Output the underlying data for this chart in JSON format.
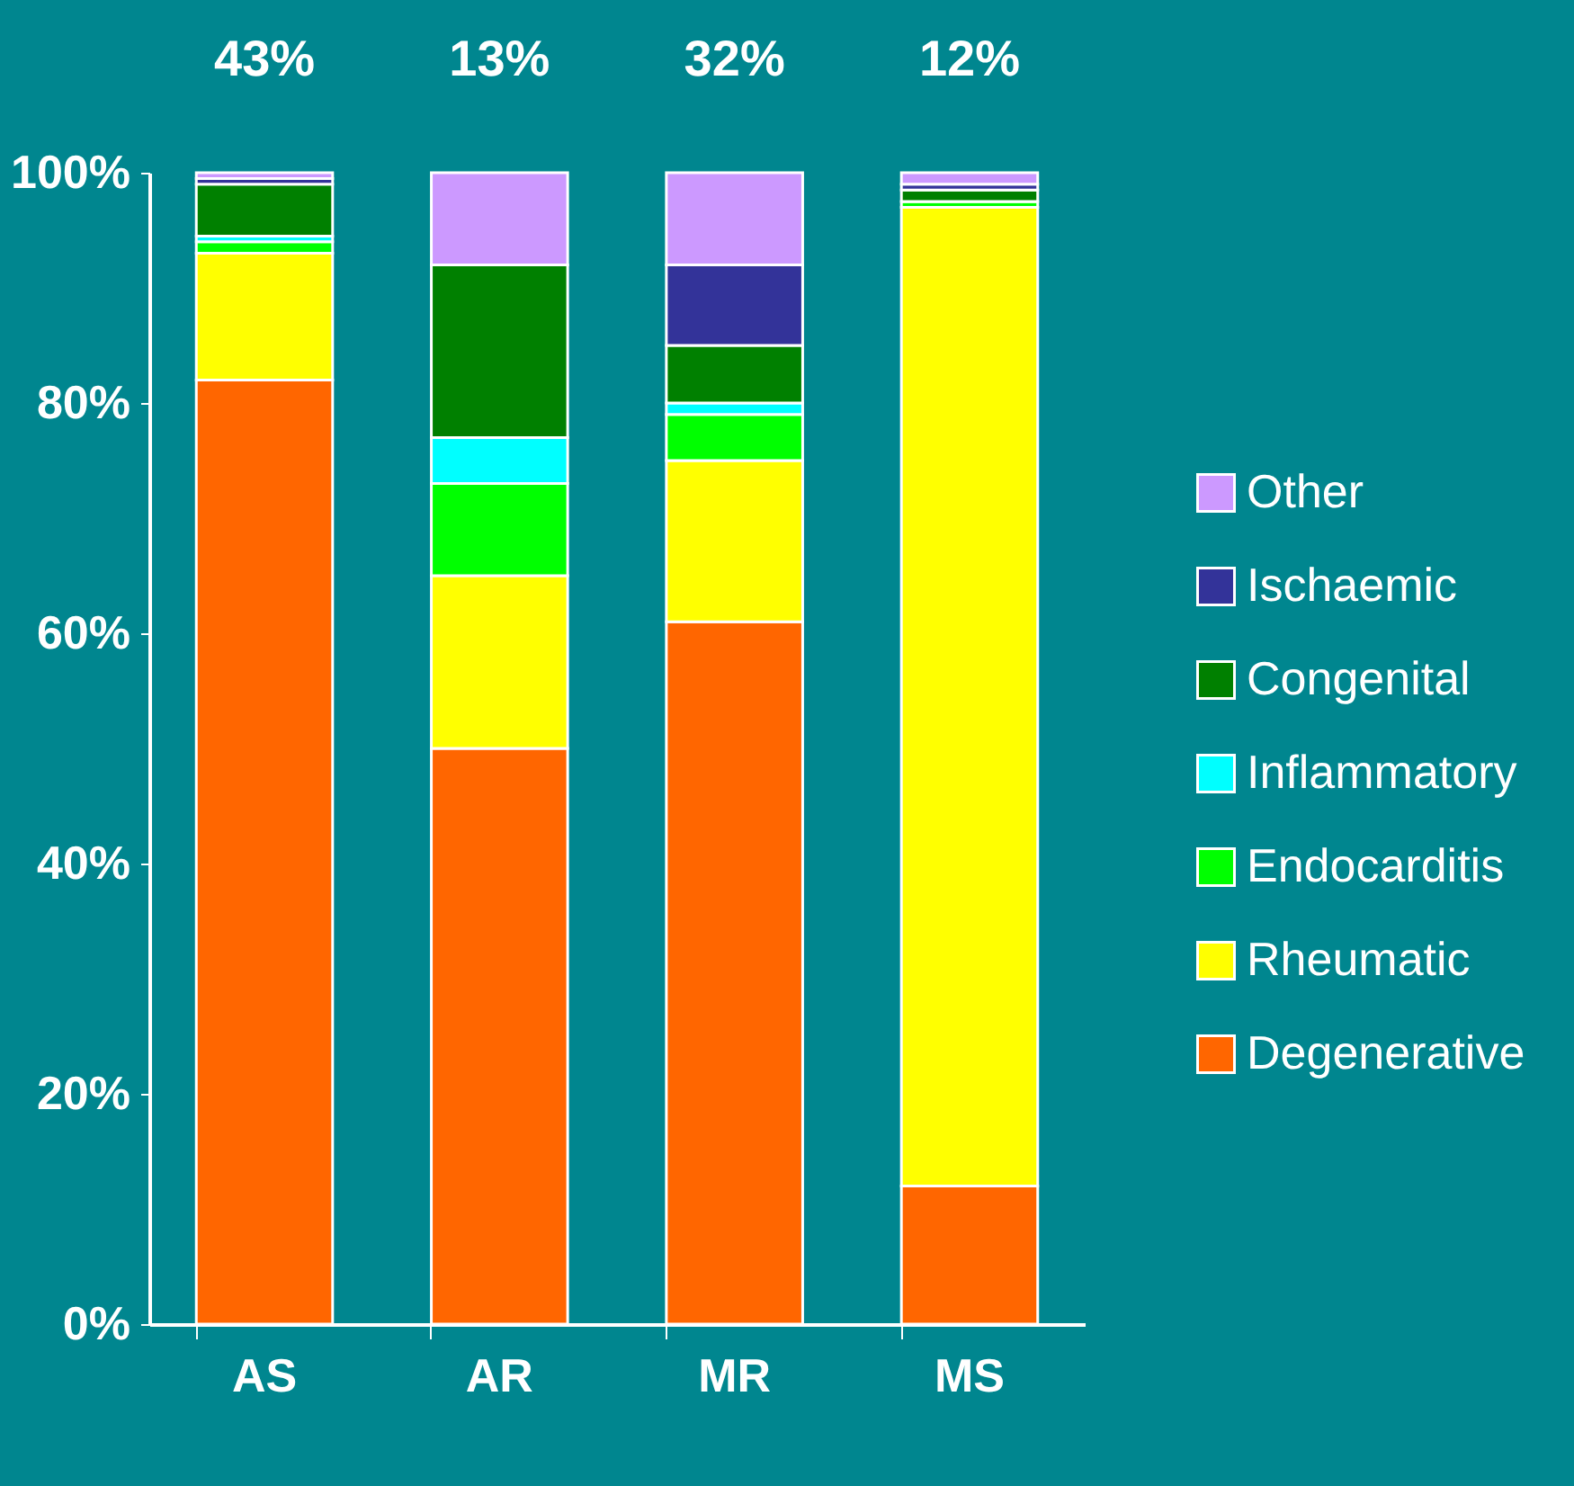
{
  "chart_data": {
    "type": "bar",
    "stacked": true,
    "categories": [
      "AS",
      "AR",
      "MR",
      "MS"
    ],
    "ylim": [
      0,
      100
    ],
    "yticks": [
      {
        "value": 0,
        "label": "0%"
      },
      {
        "value": 20,
        "label": "20%"
      },
      {
        "value": 40,
        "label": "40%"
      },
      {
        "value": 60,
        "label": "60%"
      },
      {
        "value": 80,
        "label": "80%"
      },
      {
        "value": 100,
        "label": "100%"
      }
    ],
    "series": [
      {
        "name": "Degenerative",
        "color": "#ff6600",
        "values": [
          82,
          50,
          61,
          12
        ]
      },
      {
        "name": "Rheumatic",
        "color": "#ffff00",
        "values": [
          11,
          15,
          14,
          85
        ]
      },
      {
        "name": "Endocarditis",
        "color": "#00ff00",
        "values": [
          1,
          8,
          4,
          0.5
        ]
      },
      {
        "name": "Inflammatory",
        "color": "#00ffff",
        "values": [
          0.5,
          4,
          1,
          0
        ]
      },
      {
        "name": "Congenital",
        "color": "#008000",
        "values": [
          4.5,
          15,
          5,
          1
        ]
      },
      {
        "name": "Ischaemic",
        "color": "#333399",
        "values": [
          0.5,
          0,
          7,
          0.5
        ]
      },
      {
        "name": "Other",
        "color": "#cc99ff",
        "values": [
          0.5,
          8,
          8,
          1
        ]
      }
    ],
    "annotations": [
      "43%",
      "13%",
      "32%",
      "12%"
    ],
    "legend": "right",
    "grid": false
  }
}
